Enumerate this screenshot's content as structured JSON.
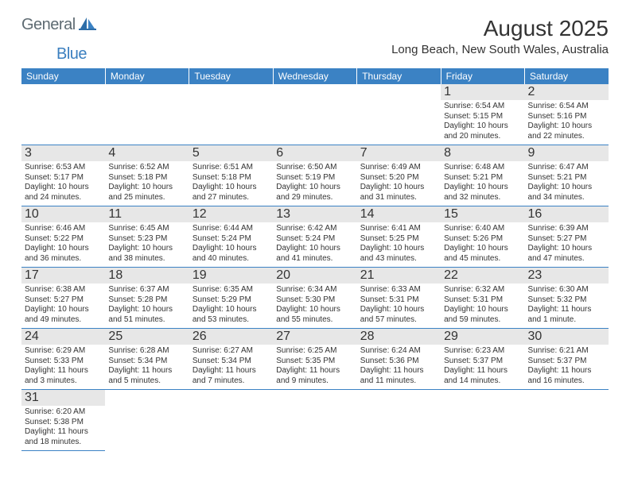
{
  "logo": {
    "text_main": "General",
    "text_sub": "Blue"
  },
  "title": {
    "month_year": "August 2025",
    "location": "Long Beach, New South Wales, Australia"
  },
  "colors": {
    "header_bg": "#3b82c4",
    "header_text": "#ffffff",
    "daynum_bg": "#e7e7e7",
    "rule": "#3b82c4",
    "body_text": "#333333",
    "logo_main": "#5e6b72",
    "logo_sub": "#3b7fbf"
  },
  "day_headers": [
    "Sunday",
    "Monday",
    "Tuesday",
    "Wednesday",
    "Thursday",
    "Friday",
    "Saturday"
  ],
  "weeks": [
    [
      {
        "day": "",
        "sunrise": "",
        "sunset": "",
        "daylight1": "",
        "daylight2": ""
      },
      {
        "day": "",
        "sunrise": "",
        "sunset": "",
        "daylight1": "",
        "daylight2": ""
      },
      {
        "day": "",
        "sunrise": "",
        "sunset": "",
        "daylight1": "",
        "daylight2": ""
      },
      {
        "day": "",
        "sunrise": "",
        "sunset": "",
        "daylight1": "",
        "daylight2": ""
      },
      {
        "day": "",
        "sunrise": "",
        "sunset": "",
        "daylight1": "",
        "daylight2": ""
      },
      {
        "day": "1",
        "sunrise": "Sunrise: 6:54 AM",
        "sunset": "Sunset: 5:15 PM",
        "daylight1": "Daylight: 10 hours",
        "daylight2": "and 20 minutes."
      },
      {
        "day": "2",
        "sunrise": "Sunrise: 6:54 AM",
        "sunset": "Sunset: 5:16 PM",
        "daylight1": "Daylight: 10 hours",
        "daylight2": "and 22 minutes."
      }
    ],
    [
      {
        "day": "3",
        "sunrise": "Sunrise: 6:53 AM",
        "sunset": "Sunset: 5:17 PM",
        "daylight1": "Daylight: 10 hours",
        "daylight2": "and 24 minutes."
      },
      {
        "day": "4",
        "sunrise": "Sunrise: 6:52 AM",
        "sunset": "Sunset: 5:18 PM",
        "daylight1": "Daylight: 10 hours",
        "daylight2": "and 25 minutes."
      },
      {
        "day": "5",
        "sunrise": "Sunrise: 6:51 AM",
        "sunset": "Sunset: 5:18 PM",
        "daylight1": "Daylight: 10 hours",
        "daylight2": "and 27 minutes."
      },
      {
        "day": "6",
        "sunrise": "Sunrise: 6:50 AM",
        "sunset": "Sunset: 5:19 PM",
        "daylight1": "Daylight: 10 hours",
        "daylight2": "and 29 minutes."
      },
      {
        "day": "7",
        "sunrise": "Sunrise: 6:49 AM",
        "sunset": "Sunset: 5:20 PM",
        "daylight1": "Daylight: 10 hours",
        "daylight2": "and 31 minutes."
      },
      {
        "day": "8",
        "sunrise": "Sunrise: 6:48 AM",
        "sunset": "Sunset: 5:21 PM",
        "daylight1": "Daylight: 10 hours",
        "daylight2": "and 32 minutes."
      },
      {
        "day": "9",
        "sunrise": "Sunrise: 6:47 AM",
        "sunset": "Sunset: 5:21 PM",
        "daylight1": "Daylight: 10 hours",
        "daylight2": "and 34 minutes."
      }
    ],
    [
      {
        "day": "10",
        "sunrise": "Sunrise: 6:46 AM",
        "sunset": "Sunset: 5:22 PM",
        "daylight1": "Daylight: 10 hours",
        "daylight2": "and 36 minutes."
      },
      {
        "day": "11",
        "sunrise": "Sunrise: 6:45 AM",
        "sunset": "Sunset: 5:23 PM",
        "daylight1": "Daylight: 10 hours",
        "daylight2": "and 38 minutes."
      },
      {
        "day": "12",
        "sunrise": "Sunrise: 6:44 AM",
        "sunset": "Sunset: 5:24 PM",
        "daylight1": "Daylight: 10 hours",
        "daylight2": "and 40 minutes."
      },
      {
        "day": "13",
        "sunrise": "Sunrise: 6:42 AM",
        "sunset": "Sunset: 5:24 PM",
        "daylight1": "Daylight: 10 hours",
        "daylight2": "and 41 minutes."
      },
      {
        "day": "14",
        "sunrise": "Sunrise: 6:41 AM",
        "sunset": "Sunset: 5:25 PM",
        "daylight1": "Daylight: 10 hours",
        "daylight2": "and 43 minutes."
      },
      {
        "day": "15",
        "sunrise": "Sunrise: 6:40 AM",
        "sunset": "Sunset: 5:26 PM",
        "daylight1": "Daylight: 10 hours",
        "daylight2": "and 45 minutes."
      },
      {
        "day": "16",
        "sunrise": "Sunrise: 6:39 AM",
        "sunset": "Sunset: 5:27 PM",
        "daylight1": "Daylight: 10 hours",
        "daylight2": "and 47 minutes."
      }
    ],
    [
      {
        "day": "17",
        "sunrise": "Sunrise: 6:38 AM",
        "sunset": "Sunset: 5:27 PM",
        "daylight1": "Daylight: 10 hours",
        "daylight2": "and 49 minutes."
      },
      {
        "day": "18",
        "sunrise": "Sunrise: 6:37 AM",
        "sunset": "Sunset: 5:28 PM",
        "daylight1": "Daylight: 10 hours",
        "daylight2": "and 51 minutes."
      },
      {
        "day": "19",
        "sunrise": "Sunrise: 6:35 AM",
        "sunset": "Sunset: 5:29 PM",
        "daylight1": "Daylight: 10 hours",
        "daylight2": "and 53 minutes."
      },
      {
        "day": "20",
        "sunrise": "Sunrise: 6:34 AM",
        "sunset": "Sunset: 5:30 PM",
        "daylight1": "Daylight: 10 hours",
        "daylight2": "and 55 minutes."
      },
      {
        "day": "21",
        "sunrise": "Sunrise: 6:33 AM",
        "sunset": "Sunset: 5:31 PM",
        "daylight1": "Daylight: 10 hours",
        "daylight2": "and 57 minutes."
      },
      {
        "day": "22",
        "sunrise": "Sunrise: 6:32 AM",
        "sunset": "Sunset: 5:31 PM",
        "daylight1": "Daylight: 10 hours",
        "daylight2": "and 59 minutes."
      },
      {
        "day": "23",
        "sunrise": "Sunrise: 6:30 AM",
        "sunset": "Sunset: 5:32 PM",
        "daylight1": "Daylight: 11 hours",
        "daylight2": "and 1 minute."
      }
    ],
    [
      {
        "day": "24",
        "sunrise": "Sunrise: 6:29 AM",
        "sunset": "Sunset: 5:33 PM",
        "daylight1": "Daylight: 11 hours",
        "daylight2": "and 3 minutes."
      },
      {
        "day": "25",
        "sunrise": "Sunrise: 6:28 AM",
        "sunset": "Sunset: 5:34 PM",
        "daylight1": "Daylight: 11 hours",
        "daylight2": "and 5 minutes."
      },
      {
        "day": "26",
        "sunrise": "Sunrise: 6:27 AM",
        "sunset": "Sunset: 5:34 PM",
        "daylight1": "Daylight: 11 hours",
        "daylight2": "and 7 minutes."
      },
      {
        "day": "27",
        "sunrise": "Sunrise: 6:25 AM",
        "sunset": "Sunset: 5:35 PM",
        "daylight1": "Daylight: 11 hours",
        "daylight2": "and 9 minutes."
      },
      {
        "day": "28",
        "sunrise": "Sunrise: 6:24 AM",
        "sunset": "Sunset: 5:36 PM",
        "daylight1": "Daylight: 11 hours",
        "daylight2": "and 11 minutes."
      },
      {
        "day": "29",
        "sunrise": "Sunrise: 6:23 AM",
        "sunset": "Sunset: 5:37 PM",
        "daylight1": "Daylight: 11 hours",
        "daylight2": "and 14 minutes."
      },
      {
        "day": "30",
        "sunrise": "Sunrise: 6:21 AM",
        "sunset": "Sunset: 5:37 PM",
        "daylight1": "Daylight: 11 hours",
        "daylight2": "and 16 minutes."
      }
    ],
    [
      {
        "day": "31",
        "sunrise": "Sunrise: 6:20 AM",
        "sunset": "Sunset: 5:38 PM",
        "daylight1": "Daylight: 11 hours",
        "daylight2": "and 18 minutes."
      },
      {
        "day": "",
        "sunrise": "",
        "sunset": "",
        "daylight1": "",
        "daylight2": ""
      },
      {
        "day": "",
        "sunrise": "",
        "sunset": "",
        "daylight1": "",
        "daylight2": ""
      },
      {
        "day": "",
        "sunrise": "",
        "sunset": "",
        "daylight1": "",
        "daylight2": ""
      },
      {
        "day": "",
        "sunrise": "",
        "sunset": "",
        "daylight1": "",
        "daylight2": ""
      },
      {
        "day": "",
        "sunrise": "",
        "sunset": "",
        "daylight1": "",
        "daylight2": ""
      },
      {
        "day": "",
        "sunrise": "",
        "sunset": "",
        "daylight1": "",
        "daylight2": ""
      }
    ]
  ]
}
